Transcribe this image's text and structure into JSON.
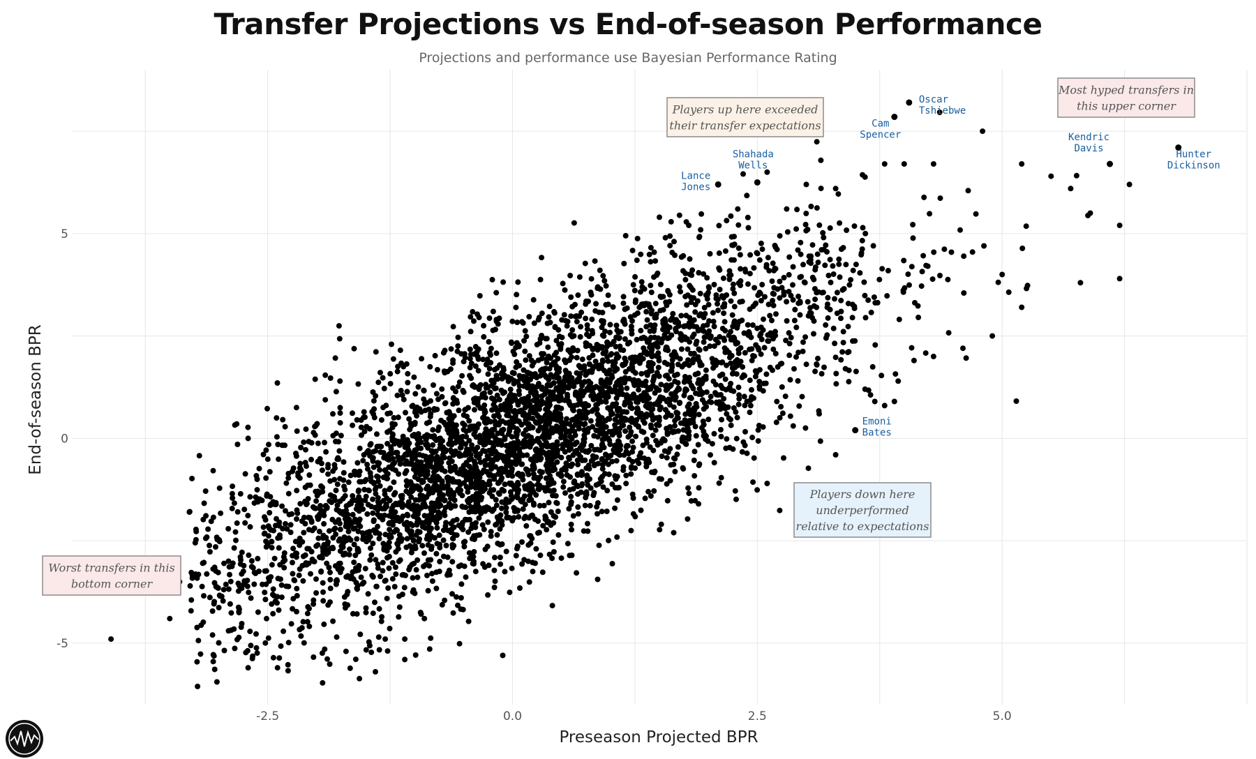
{
  "header": {
    "title": "Transfer Projections vs End-of-season Performance",
    "subtitle": "Projections and performance use Bayesian Performance Rating"
  },
  "chart_data": {
    "type": "scatter",
    "title": "Transfer Projections vs End-of-season Performance",
    "subtitle": "Projections and performance use Bayesian Performance Rating",
    "xlabel": "Preseason Projected BPR",
    "ylabel": "End-of-season BPR",
    "xlim": [
      -4.5,
      7.5
    ],
    "ylim": [
      -6.5,
      9
    ],
    "x_ticks": [
      -2.5,
      0,
      2.5,
      5
    ],
    "x_tick_labels": [
      "-2.5",
      "0.0",
      "2.5",
      "5.0"
    ],
    "y_ticks": [
      -5,
      0,
      5
    ],
    "y_tick_labels": [
      "-5",
      "0",
      "5"
    ],
    "grid": true,
    "point_color": "#000000",
    "label_color": "#1a5fa0",
    "series": [
      {
        "cloud": {
          "n": 4400,
          "x_mean": 0.1,
          "x_sd": 1.65,
          "slope": 1.0,
          "intercept": -0.1,
          "residual_sd": 1.45,
          "note": "approximate density of the unlabelled point cloud"
        },
        "points": [
          [
            -4.1,
            -4.9
          ],
          [
            -3.5,
            -4.4
          ],
          [
            -3.4,
            -3.5
          ],
          [
            -3.3,
            -1.8
          ],
          [
            -2.9,
            -3.0
          ],
          [
            -2.7,
            0.0
          ],
          [
            -2.9,
            -4.7
          ],
          [
            -2.7,
            -5.6
          ],
          [
            -2.5,
            -2.6
          ],
          [
            -2.4,
            -5.6
          ],
          [
            -1.7,
            -5.2
          ],
          [
            -1.4,
            -5.7
          ],
          [
            -1.1,
            -5.4
          ],
          [
            -0.1,
            -5.3
          ],
          [
            -1.1,
            -4.9
          ],
          [
            -1.3,
            -4.9
          ],
          [
            -0.9,
            -4.4
          ],
          [
            1.9,
            -1.6
          ],
          [
            2.6,
            -1.1
          ],
          [
            3.3,
            -0.4
          ],
          [
            3.7,
            0.9
          ],
          [
            3.8,
            0.8
          ],
          [
            1.5,
            5.4
          ],
          [
            1.8,
            5.2
          ],
          [
            2.3,
            5.6
          ],
          [
            2.6,
            6.5
          ],
          [
            2.8,
            5.6
          ],
          [
            3.0,
            6.2
          ],
          [
            3.3,
            6.1
          ],
          [
            4.0,
            6.7
          ],
          [
            3.8,
            6.7
          ],
          [
            4.3,
            6.7
          ],
          [
            4.8,
            7.5
          ],
          [
            5.2,
            6.7
          ],
          [
            5.5,
            6.4
          ],
          [
            5.7,
            6.1
          ],
          [
            5.9,
            5.5
          ],
          [
            5.8,
            3.8
          ],
          [
            6.2,
            3.9
          ],
          [
            6.2,
            5.2
          ],
          [
            6.3,
            6.2
          ],
          [
            5.2,
            3.2
          ],
          [
            4.9,
            2.5
          ],
          [
            4.6,
            2.2
          ],
          [
            4.3,
            2.0
          ],
          [
            3.9,
            0.9
          ],
          [
            3.6,
            1.2
          ],
          [
            3.4,
            1.7
          ],
          [
            4.1,
            1.9
          ],
          [
            5.0,
            4.0
          ]
        ]
      }
    ],
    "labeled_players": [
      {
        "name": "Oscar Tshiebwe",
        "lines": [
          "Oscar",
          "Tshiebwe"
        ],
        "x": 4.05,
        "y": 8.2
      },
      {
        "name": "Cam Spencer",
        "lines": [
          "Cam",
          "Spencer"
        ],
        "x": 3.9,
        "y": 7.85
      },
      {
        "name": "Kendric Davis",
        "lines": [
          "Kendric",
          "Davis"
        ],
        "x": 6.1,
        "y": 6.7
      },
      {
        "name": "Hunter Dickinson",
        "lines": [
          "Hunter",
          "Dickinson"
        ],
        "x": 6.8,
        "y": 7.1
      },
      {
        "name": "Shahada Wells",
        "lines": [
          "Shahada",
          "Wells"
        ],
        "x": 2.5,
        "y": 6.25
      },
      {
        "name": "Lance Jones",
        "lines": [
          "Lance",
          "Jones"
        ],
        "x": 2.1,
        "y": 6.2
      },
      {
        "name": "Emoni Bates",
        "lines": [
          "Emoni",
          "Bates"
        ],
        "x": 3.5,
        "y": 0.2
      }
    ],
    "annotations": [
      {
        "lines": [
          "Players up here exceeded",
          "their transfer expectations"
        ],
        "bg": "#fbf1e6",
        "position": "top-center"
      },
      {
        "lines": [
          "Most hyped transfers in",
          "this upper corner"
        ],
        "bg": "#fbe9ea",
        "position": "top-right"
      },
      {
        "lines": [
          "Players down here",
          "underperformed",
          "relative to expectations"
        ],
        "bg": "#e6f2fb",
        "position": "center-right"
      },
      {
        "lines": [
          "Worst transfers in this",
          "bottom corner"
        ],
        "bg": "#fbe9ea",
        "position": "bottom-left"
      }
    ]
  }
}
